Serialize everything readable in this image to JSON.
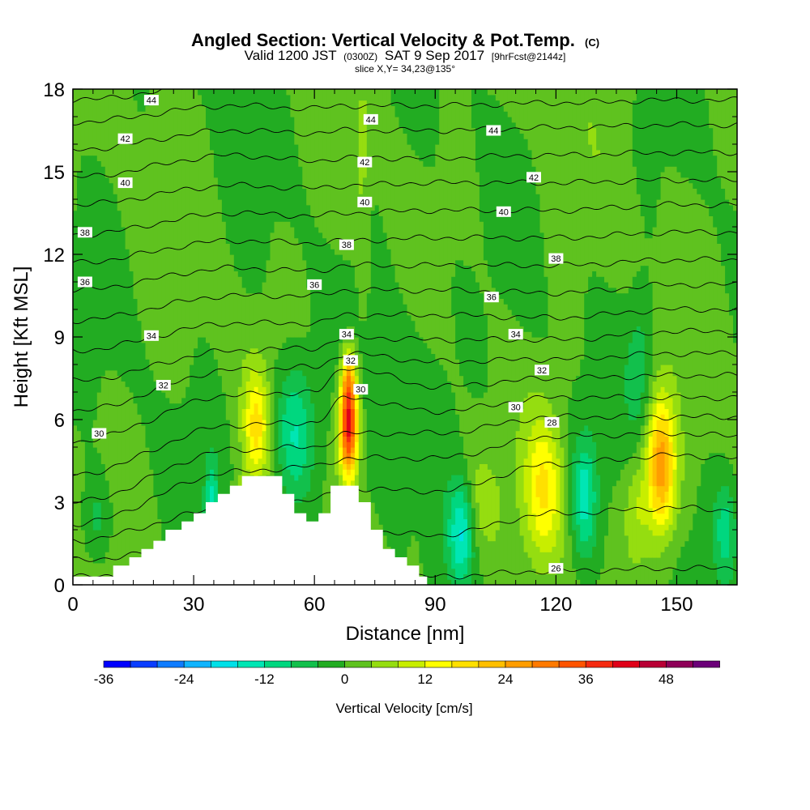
{
  "chart_data": {
    "type": "heatmap",
    "title": "Angled Section: Vertical Velocity & Pot.Temp.",
    "title_units": "(C)",
    "subtitle": {
      "valid": "Valid 1200 JST",
      "utc": "(0300Z)",
      "date": "SAT 9 Sep 2017",
      "forecast": "[9hrFcst@2144z]"
    },
    "slice_label": "slice X,Y= 34,23@135°",
    "xlabel": "Distance [nm]",
    "ylabel": "Height [Kft MSL]",
    "xlim": [
      0,
      165
    ],
    "ylim": [
      0,
      18
    ],
    "x_ticks": [
      {
        "value": 0,
        "label": "0"
      },
      {
        "value": 30,
        "label": "30"
      },
      {
        "value": 60,
        "label": "60"
      },
      {
        "value": 90,
        "label": "90"
      },
      {
        "value": 120,
        "label": "120"
      },
      {
        "value": 150,
        "label": "150"
      }
    ],
    "y_ticks": [
      {
        "value": 0,
        "label": "0"
      },
      {
        "value": 3,
        "label": "3"
      },
      {
        "value": 6,
        "label": "6"
      },
      {
        "value": 9,
        "label": "9"
      },
      {
        "value": 12,
        "label": "12"
      },
      {
        "value": 15,
        "label": "15"
      },
      {
        "value": 18,
        "label": "18"
      }
    ],
    "colorbar": {
      "label": "Vertical Velocity [cm/s]",
      "min": -36,
      "max": 54,
      "step": 4,
      "colors": [
        "#0000ff",
        "#0a3dff",
        "#0f7cff",
        "#10b4ff",
        "#00e0e8",
        "#00e6b4",
        "#00d77f",
        "#12c04c",
        "#22ac22",
        "#5fc21f",
        "#95dd10",
        "#c8ee00",
        "#ffff00",
        "#ffe000",
        "#ffbf00",
        "#ff9d00",
        "#ff7a00",
        "#ff5400",
        "#f52a10",
        "#e00018",
        "#b80035",
        "#8e0058",
        "#6b0078"
      ],
      "tick_labels": [
        {
          "value": -36,
          "label": "-36"
        },
        {
          "value": -24,
          "label": "-24"
        },
        {
          "value": -12,
          "label": "-12"
        },
        {
          "value": 0,
          "label": "0"
        },
        {
          "value": 12,
          "label": "12"
        },
        {
          "value": 24,
          "label": "24"
        },
        {
          "value": 36,
          "label": "36"
        },
        {
          "value": 48,
          "label": "48"
        }
      ]
    },
    "vertical_velocity_features": [
      {
        "x": 45.5,
        "y": 5.8,
        "sx": 2.2,
        "sy": 1.4,
        "w": 15
      },
      {
        "x": 68.5,
        "y": 5.8,
        "sx": 1.6,
        "sy": 1.3,
        "w": 42
      },
      {
        "x": 68.5,
        "y": 7.6,
        "sx": 1.2,
        "sy": 0.8,
        "w": 14
      },
      {
        "x": 117,
        "y": 3.5,
        "sx": 3.2,
        "sy": 1.8,
        "w": 14
      },
      {
        "x": 146,
        "y": 4.3,
        "sx": 2.6,
        "sy": 1.7,
        "w": 26
      },
      {
        "x": 140,
        "y": 2.8,
        "sx": 2.2,
        "sy": 1.2,
        "w": 7
      },
      {
        "x": 42,
        "y": 2.5,
        "sx": 1.2,
        "sy": 1,
        "w": 8
      },
      {
        "x": 101,
        "y": 3,
        "sx": 4,
        "sy": 1.4,
        "w": 6
      },
      {
        "x": 72,
        "y": 14.5,
        "sx": 1,
        "sy": 3,
        "w": 4
      },
      {
        "x": 34.5,
        "y": 2.8,
        "sx": 1.2,
        "sy": 1.2,
        "w": -14
      },
      {
        "x": 55,
        "y": 5.5,
        "sx": 3.6,
        "sy": 1.8,
        "w": -14
      },
      {
        "x": 96.5,
        "y": 2,
        "sx": 2.2,
        "sy": 1.3,
        "w": -16
      },
      {
        "x": 127,
        "y": 3.2,
        "sx": 2.2,
        "sy": 1.5,
        "w": -14
      },
      {
        "x": 6,
        "y": 2.3,
        "sx": 2.5,
        "sy": 1.2,
        "w": -7
      },
      {
        "x": 162,
        "y": 2,
        "sx": 2,
        "sy": 1.2,
        "w": -9
      },
      {
        "x": 141,
        "y": 8,
        "sx": 2.4,
        "sy": 1.8,
        "w": -7
      },
      {
        "x": 80,
        "y": 4.5,
        "sx": 3,
        "sy": 2,
        "w": -4
      },
      {
        "x": 90,
        "y": 9,
        "sx": 6,
        "sy": 3,
        "w": -3
      }
    ],
    "terrain": [
      [
        0,
        0.3
      ],
      [
        10,
        0.3
      ],
      [
        10,
        0.7
      ],
      [
        14,
        0.7
      ],
      [
        14,
        1
      ],
      [
        17,
        1
      ],
      [
        17,
        1.3
      ],
      [
        20,
        1.3
      ],
      [
        20,
        1.6
      ],
      [
        23,
        1.6
      ],
      [
        23,
        2
      ],
      [
        27,
        2
      ],
      [
        27,
        2.3
      ],
      [
        30,
        2.3
      ],
      [
        30,
        2.6
      ],
      [
        33,
        2.6
      ],
      [
        33,
        3
      ],
      [
        36,
        3
      ],
      [
        36,
        3.3
      ],
      [
        39,
        3.3
      ],
      [
        39,
        3.6
      ],
      [
        42,
        3.6
      ],
      [
        42,
        3.95
      ],
      [
        52,
        3.95
      ],
      [
        52,
        3.3
      ],
      [
        55,
        3.3
      ],
      [
        55,
        2.6
      ],
      [
        58,
        2.6
      ],
      [
        58,
        2.3
      ],
      [
        61,
        2.3
      ],
      [
        61,
        2.6
      ],
      [
        64,
        2.6
      ],
      [
        64,
        3.6
      ],
      [
        71,
        3.6
      ],
      [
        71,
        3
      ],
      [
        74,
        3
      ],
      [
        74,
        2
      ],
      [
        77,
        2
      ],
      [
        77,
        1.3
      ],
      [
        80,
        1.3
      ],
      [
        80,
        1
      ],
      [
        83,
        1
      ],
      [
        83,
        0.7
      ],
      [
        86,
        0.7
      ],
      [
        86,
        0.3
      ],
      [
        88,
        0.3
      ],
      [
        88,
        0
      ]
    ],
    "isentropes": {
      "levels": [
        26,
        27,
        28,
        29,
        30,
        31,
        32,
        33,
        34,
        35,
        36,
        37,
        38,
        39,
        40,
        41,
        42,
        43,
        44,
        45
      ],
      "profiles": [
        {
          "x": 0,
          "h": [
            0.3,
            0.9,
            1.6,
            2.2,
            3.0,
            4.0,
            5.2,
            6.3,
            7.4,
            8.5,
            9.6,
            10.7,
            11.7,
            12.7,
            13.8,
            14.8,
            15.8,
            16.8,
            17.6,
            18.8
          ]
        },
        {
          "x": 40,
          "h": [
            0.3,
            1.5,
            2.8,
            4.1,
            4.9,
            5.8,
            6.9,
            7.8,
            8.5,
            9.5,
            10.5,
            11.5,
            12.5,
            13.5,
            14.5,
            15.6,
            16.5,
            17.4,
            18.2,
            19.0
          ]
        },
        {
          "x": 60,
          "h": [
            0.3,
            1.7,
            3.1,
            4.3,
            5.0,
            5.9,
            7.0,
            7.9,
            8.6,
            9.5,
            10.5,
            11.4,
            12.4,
            13.4,
            14.4,
            15.4,
            16.4,
            17.3,
            18.1,
            19.0
          ]
        },
        {
          "x": 68,
          "h": [
            0.3,
            2.0,
            3.5,
            4.6,
            5.5,
            6.8,
            7.9,
            8.4,
            9.0,
            9.8,
            10.7,
            11.6,
            12.5,
            13.5,
            14.5,
            15.5,
            16.5,
            17.4,
            18.2,
            19.0
          ]
        },
        {
          "x": 90,
          "h": [
            0.3,
            1.8,
            3.4,
            4.6,
            5.5,
            6.3,
            7.2,
            8.1,
            8.9,
            9.8,
            10.7,
            11.6,
            12.6,
            13.6,
            14.6,
            15.5,
            16.5,
            17.4,
            18.2,
            19.0
          ]
        },
        {
          "x": 120,
          "h": [
            0.5,
            2.6,
            4.4,
            5.4,
            6.1,
            6.8,
            7.5,
            8.2,
            8.9,
            9.7,
            10.6,
            11.6,
            12.6,
            13.6,
            14.6,
            15.6,
            16.6,
            17.5,
            18.3,
            19.1
          ]
        },
        {
          "x": 150,
          "h": [
            0.6,
            2.8,
            4.7,
            5.5,
            6.1,
            6.8,
            7.6,
            8.4,
            9.2,
            10.0,
            10.9,
            11.8,
            12.8,
            13.8,
            14.7,
            15.7,
            16.7,
            17.6,
            18.4,
            19.2
          ]
        },
        {
          "x": 165,
          "h": [
            0.6,
            2.7,
            4.6,
            5.4,
            6.1,
            6.8,
            7.6,
            8.4,
            9.2,
            10.0,
            10.9,
            11.8,
            12.8,
            13.8,
            14.7,
            15.7,
            16.7,
            17.6,
            18.4,
            19.2
          ]
        }
      ]
    },
    "contour_labels": [
      {
        "text": "44",
        "x": 19.5,
        "y": 17.6
      },
      {
        "text": "42",
        "x": 13,
        "y": 16.2
      },
      {
        "text": "40",
        "x": 13,
        "y": 14.6
      },
      {
        "text": "38",
        "x": 3,
        "y": 12.8
      },
      {
        "text": "36",
        "x": 3,
        "y": 11.0
      },
      {
        "text": "34",
        "x": 19.5,
        "y": 9.05
      },
      {
        "text": "32",
        "x": 22.5,
        "y": 7.25
      },
      {
        "text": "30",
        "x": 6.5,
        "y": 5.5
      },
      {
        "text": "44",
        "x": 74,
        "y": 16.9
      },
      {
        "text": "42",
        "x": 72.5,
        "y": 15.35
      },
      {
        "text": "40",
        "x": 72.5,
        "y": 13.9
      },
      {
        "text": "38",
        "x": 68,
        "y": 12.35
      },
      {
        "text": "36",
        "x": 60,
        "y": 10.9
      },
      {
        "text": "34",
        "x": 68,
        "y": 9.1
      },
      {
        "text": "32",
        "x": 69,
        "y": 8.15
      },
      {
        "text": "30",
        "x": 71.5,
        "y": 7.1
      },
      {
        "text": "44",
        "x": 104.5,
        "y": 16.5
      },
      {
        "text": "42",
        "x": 114.5,
        "y": 14.8
      },
      {
        "text": "40",
        "x": 107,
        "y": 13.55
      },
      {
        "text": "38",
        "x": 120,
        "y": 11.85
      },
      {
        "text": "36",
        "x": 104,
        "y": 10.45
      },
      {
        "text": "34",
        "x": 110,
        "y": 9.1
      },
      {
        "text": "32",
        "x": 116.5,
        "y": 7.8
      },
      {
        "text": "30",
        "x": 110,
        "y": 6.45
      },
      {
        "text": "28",
        "x": 119,
        "y": 5.9
      },
      {
        "text": "26",
        "x": 120,
        "y": 0.6
      }
    ]
  }
}
